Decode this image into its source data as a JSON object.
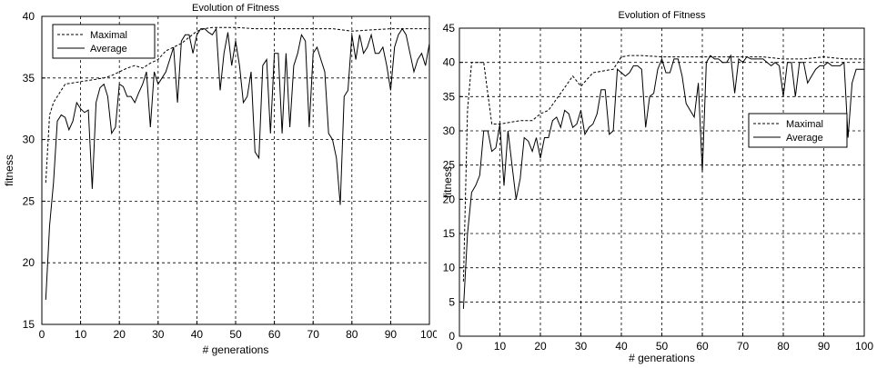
{
  "chart_data": [
    {
      "type": "line",
      "title": "Evolution of Fitness",
      "xlabel": "# generations",
      "ylabel": "fitness",
      "xlim": [
        0,
        100
      ],
      "ylim": [
        15,
        40
      ],
      "xticks": [
        0,
        10,
        20,
        30,
        40,
        50,
        60,
        70,
        80,
        90,
        100
      ],
      "yticks": [
        15,
        20,
        25,
        30,
        35,
        40
      ],
      "grid": true,
      "legend_position": "top-left",
      "series": [
        {
          "name": "Maximal",
          "style": "dashed",
          "x": [
            1,
            2,
            3,
            4,
            5,
            6,
            8,
            10,
            12,
            14,
            16,
            18,
            20,
            22,
            24,
            26,
            28,
            30,
            32,
            34,
            36,
            38,
            40,
            42,
            44,
            46,
            50,
            55,
            60,
            65,
            70,
            75,
            80,
            85,
            90,
            95,
            100
          ],
          "values": [
            26.5,
            32,
            33,
            33.5,
            34,
            34.5,
            34.6,
            34.7,
            34.8,
            34.9,
            35,
            35.2,
            35.5,
            35.8,
            36,
            35.8,
            36.2,
            36.5,
            37.2,
            37.5,
            37.8,
            38.3,
            38.8,
            39,
            39.1,
            39.1,
            39.1,
            39,
            39,
            39,
            39,
            39,
            38.8,
            38.9,
            39,
            39,
            39
          ]
        },
        {
          "name": "Average",
          "style": "solid",
          "x": [
            1,
            2,
            3,
            4,
            5,
            6,
            7,
            8,
            9,
            10,
            11,
            12,
            13,
            14,
            15,
            16,
            17,
            18,
            19,
            20,
            21,
            22,
            23,
            24,
            25,
            26,
            27,
            28,
            29,
            30,
            31,
            32,
            33,
            34,
            35,
            36,
            37,
            38,
            39,
            40,
            41,
            42,
            43,
            44,
            45,
            46,
            47,
            48,
            49,
            50,
            51,
            52,
            53,
            54,
            55,
            56,
            57,
            58,
            59,
            60,
            61,
            62,
            63,
            64,
            65,
            66,
            67,
            68,
            69,
            70,
            71,
            72,
            73,
            74,
            75,
            76,
            77,
            78,
            79,
            80,
            81,
            82,
            83,
            84,
            85,
            86,
            87,
            88,
            89,
            90,
            91,
            92,
            93,
            94,
            95,
            96,
            97,
            98,
            99,
            100
          ],
          "values": [
            17,
            23,
            26.5,
            31.5,
            32,
            31.8,
            30.8,
            31.5,
            33,
            32.5,
            32.2,
            32.4,
            26,
            33,
            34.2,
            34.5,
            33.5,
            30.5,
            31,
            34.5,
            34.3,
            33.5,
            33.5,
            33,
            33.8,
            34.5,
            35.5,
            31,
            35.5,
            34.5,
            35,
            35.5,
            36.5,
            37.5,
            33,
            38,
            38.5,
            38.5,
            37,
            38.5,
            39,
            39,
            38.7,
            38.5,
            39,
            34,
            37,
            38.7,
            36,
            38,
            36,
            33,
            33.5,
            35.5,
            29,
            28.5,
            36,
            36.5,
            30.5,
            37,
            37,
            30.5,
            37,
            31,
            36,
            37,
            38.5,
            38,
            31,
            37,
            37.5,
            36.5,
            35.5,
            30.5,
            30,
            28.5,
            24.7,
            33.5,
            34,
            38.5,
            36.5,
            38.5,
            37,
            37.5,
            38.5,
            37,
            37,
            37.5,
            36,
            34,
            37.5,
            38.5,
            39,
            38.5,
            37,
            35.5,
            36.5,
            37,
            36,
            37.8
          ]
        }
      ]
    },
    {
      "type": "line",
      "title": "Evolution of Fitness",
      "xlabel": "# generations",
      "ylabel": "fitness",
      "xlim": [
        0,
        100
      ],
      "ylim": [
        0,
        45
      ],
      "xticks": [
        0,
        10,
        20,
        30,
        40,
        50,
        60,
        70,
        80,
        90,
        100
      ],
      "yticks": [
        0,
        5,
        10,
        15,
        20,
        25,
        30,
        35,
        40,
        45
      ],
      "grid": true,
      "legend_position": "center-right",
      "series": [
        {
          "name": "Maximal",
          "style": "dashed",
          "x": [
            1,
            2,
            3,
            4,
            5,
            6,
            8,
            10,
            12,
            15,
            18,
            20,
            22,
            25,
            28,
            30,
            33,
            36,
            38,
            40,
            42,
            45,
            50,
            55,
            60,
            65,
            70,
            75,
            80,
            85,
            90,
            95,
            100
          ],
          "values": [
            8,
            33,
            40,
            40,
            40,
            40,
            31,
            31,
            31.2,
            31.5,
            31.5,
            32.5,
            33,
            35.5,
            38,
            36.5,
            38.5,
            38.8,
            39,
            40.8,
            41,
            41,
            40.8,
            40.8,
            40.8,
            40.8,
            40.8,
            40.8,
            40.5,
            40.5,
            40.8,
            40.5,
            40.5
          ]
        },
        {
          "name": "Average",
          "style": "solid",
          "x": [
            1,
            2,
            3,
            4,
            5,
            6,
            7,
            8,
            9,
            10,
            11,
            12,
            13,
            14,
            15,
            16,
            17,
            18,
            19,
            20,
            21,
            22,
            23,
            24,
            25,
            26,
            27,
            28,
            29,
            30,
            31,
            32,
            33,
            34,
            35,
            36,
            37,
            38,
            39,
            40,
            41,
            42,
            43,
            44,
            45,
            46,
            47,
            48,
            49,
            50,
            51,
            52,
            53,
            54,
            55,
            56,
            57,
            58,
            59,
            60,
            61,
            62,
            63,
            64,
            65,
            66,
            67,
            68,
            69,
            70,
            71,
            72,
            73,
            74,
            75,
            76,
            77,
            78,
            79,
            80,
            81,
            82,
            83,
            84,
            85,
            86,
            87,
            88,
            89,
            90,
            91,
            92,
            93,
            94,
            95,
            96,
            97,
            98,
            99,
            100
          ],
          "values": [
            4,
            15,
            21,
            22,
            23.5,
            30,
            30,
            27,
            27.5,
            31,
            22,
            30,
            25,
            20,
            23,
            29,
            28.5,
            27,
            29,
            26,
            29,
            29,
            31.5,
            32,
            30.5,
            33,
            32.5,
            30.5,
            31,
            33,
            29.5,
            30.5,
            31,
            32.5,
            36,
            36,
            29.5,
            30,
            39,
            38.5,
            38,
            38.5,
            39.5,
            39.5,
            39,
            30.5,
            35,
            35.5,
            39,
            40.5,
            38.5,
            38.5,
            40.5,
            40.5,
            38,
            34,
            33,
            32,
            37,
            24,
            40,
            41,
            40.5,
            40.5,
            40,
            40,
            41,
            35.5,
            40.5,
            40,
            40.8,
            40.5,
            40.5,
            40.5,
            40.5,
            40,
            39.5,
            40,
            39.5,
            35,
            40,
            40,
            35,
            40,
            40,
            37,
            38,
            39,
            39.5,
            39.5,
            40,
            39.5,
            39.5,
            39.5,
            40,
            29,
            37,
            39,
            39,
            39
          ]
        }
      ]
    }
  ]
}
